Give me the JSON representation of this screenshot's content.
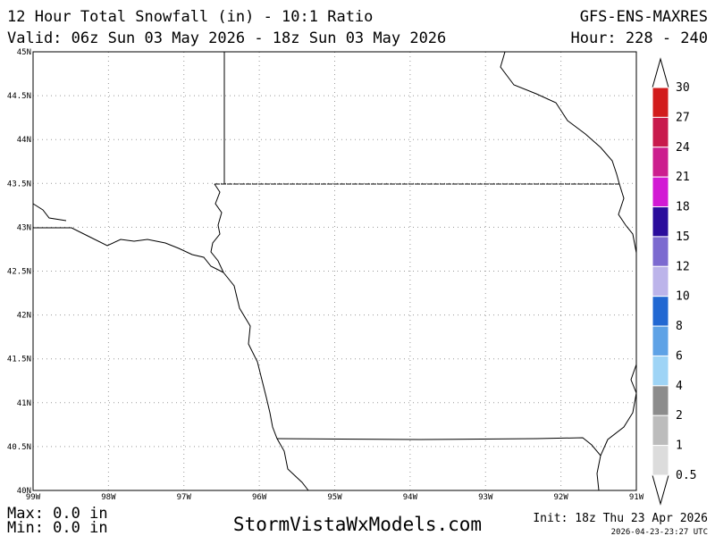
{
  "header": {
    "title": "12 Hour Total Snowfall (in) - 10:1 Ratio",
    "valid": "Valid: 06z Sun 03 May 2026 - 18z Sun 03 May 2026",
    "model": "GFS-ENS-MAXRES",
    "hour": "Hour: 228 - 240"
  },
  "map": {
    "lat_labels": [
      "45N",
      "44.5N",
      "44N",
      "43.5N",
      "43N",
      "42.5N",
      "42N",
      "41.5N",
      "41N",
      "40.5N",
      "40N"
    ],
    "lon_labels": [
      "99W",
      "98W",
      "97W",
      "96W",
      "95W",
      "94W",
      "93W",
      "92W",
      "91W"
    ]
  },
  "colorbar": {
    "labels": [
      "30",
      "27",
      "24",
      "21",
      "18",
      "15",
      "12",
      "10",
      "8",
      "6",
      "4",
      "2",
      "1",
      "0.5"
    ],
    "colors": [
      "#d21c1c",
      "#c81a4c",
      "#cc1e8e",
      "#d21ad4",
      "#2a0c9c",
      "#7c6ad0",
      "#bcb4ea",
      "#2268d2",
      "#5ea2e6",
      "#9ed4f6",
      "#8c8c8c",
      "#bcbcbc",
      "#dcdcdc"
    ]
  },
  "footer": {
    "max": "Max: 0.0 in",
    "min": "Min: 0.0 in",
    "site": "StormVistaWxModels.com",
    "init": "Init: 18z Thu 23 Apr 2026",
    "timestamp": "2026-04-23-23:27 UTC"
  }
}
